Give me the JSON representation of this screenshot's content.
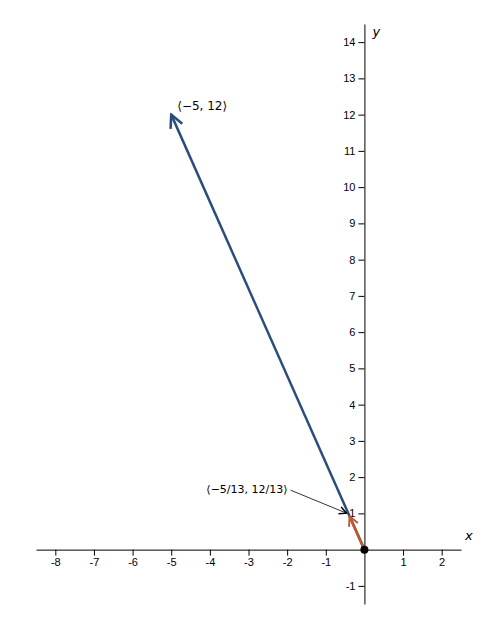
{
  "chart_data": {
    "type": "vector",
    "xlabel": "x",
    "ylabel": "y",
    "xlim": [
      -8.5,
      2.5
    ],
    "ylim": [
      -1.5,
      14.5
    ],
    "xticks": [
      -8,
      -7,
      -6,
      -5,
      -4,
      -3,
      -2,
      -1,
      1,
      2
    ],
    "yticks": [
      -1,
      1,
      2,
      3,
      4,
      5,
      6,
      7,
      8,
      9,
      10,
      11,
      12,
      13,
      14
    ],
    "series": [
      {
        "type": "vector",
        "color": "#2b4d7e",
        "x": [
          0,
          -5
        ],
        "values": [
          0,
          12
        ]
      },
      {
        "type": "vector",
        "color": "#c05a2a",
        "x": [
          0,
          -0.38461538
        ],
        "values": [
          0,
          0.92307692
        ]
      },
      {
        "type": "scatter",
        "marker": "circle",
        "color": "#000000",
        "x": [
          0
        ],
        "values": [
          0
        ]
      }
    ],
    "annotations": [
      {
        "text": "⟨−5, 12⟩",
        "x": -5,
        "y": 12
      },
      {
        "text": "⟨−5/13, 12/13⟩",
        "x": -0.38461538,
        "y": 0.92307692
      }
    ]
  }
}
